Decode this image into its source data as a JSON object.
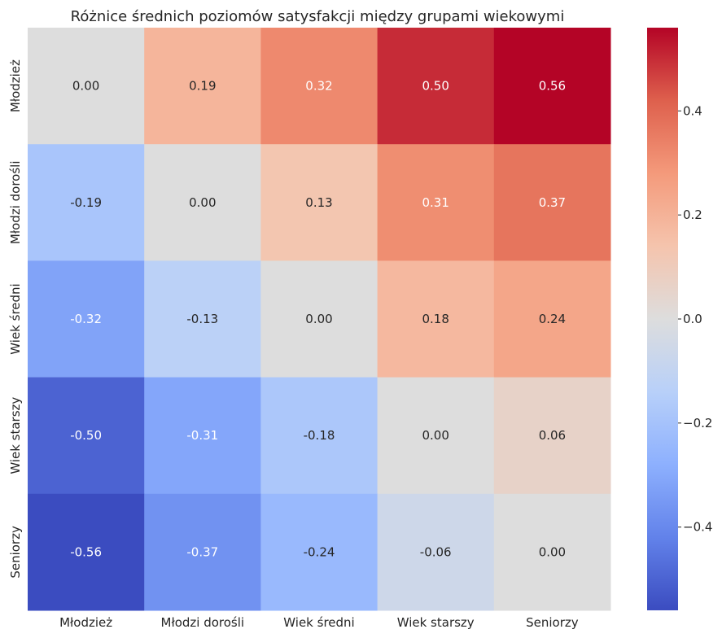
{
  "chart_data": {
    "type": "heatmap",
    "title": "Różnice średnich poziomów satysfakcji między grupami wiekowymi",
    "x_categories": [
      "Młodzież",
      "Młodzi dorośli",
      "Wiek średni",
      "Wiek starszy",
      "Seniorzy"
    ],
    "y_categories": [
      "Młodzież",
      "Młodzi dorośli",
      "Wiek średni",
      "Wiek starszy",
      "Seniorzy"
    ],
    "values": [
      [
        0.0,
        0.19,
        0.32,
        0.5,
        0.56
      ],
      [
        -0.19,
        0.0,
        0.13,
        0.31,
        0.37
      ],
      [
        -0.32,
        -0.13,
        0.0,
        0.18,
        0.24
      ],
      [
        -0.5,
        -0.31,
        -0.18,
        0.0,
        0.06
      ],
      [
        -0.56,
        -0.37,
        -0.24,
        -0.06,
        0.0
      ]
    ],
    "annotations": [
      [
        "0.00",
        "0.19",
        "0.32",
        "0.50",
        "0.56"
      ],
      [
        "-0.19",
        "0.00",
        "0.13",
        "0.31",
        "0.37"
      ],
      [
        "-0.32",
        "-0.13",
        "0.00",
        "0.18",
        "0.24"
      ],
      [
        "-0.50",
        "-0.31",
        "-0.18",
        "0.00",
        "0.06"
      ],
      [
        "-0.56",
        "-0.37",
        "-0.24",
        "-0.06",
        "0.00"
      ]
    ],
    "colormap": "coolwarm",
    "vmin": -0.56,
    "vmax": 0.56,
    "colorbar": {
      "ticks": [
        0.4,
        0.2,
        0.0,
        -0.2,
        -0.4
      ],
      "tick_labels": [
        "0.4",
        "0.2",
        "0.0",
        "−0.2",
        "−0.4"
      ]
    }
  }
}
